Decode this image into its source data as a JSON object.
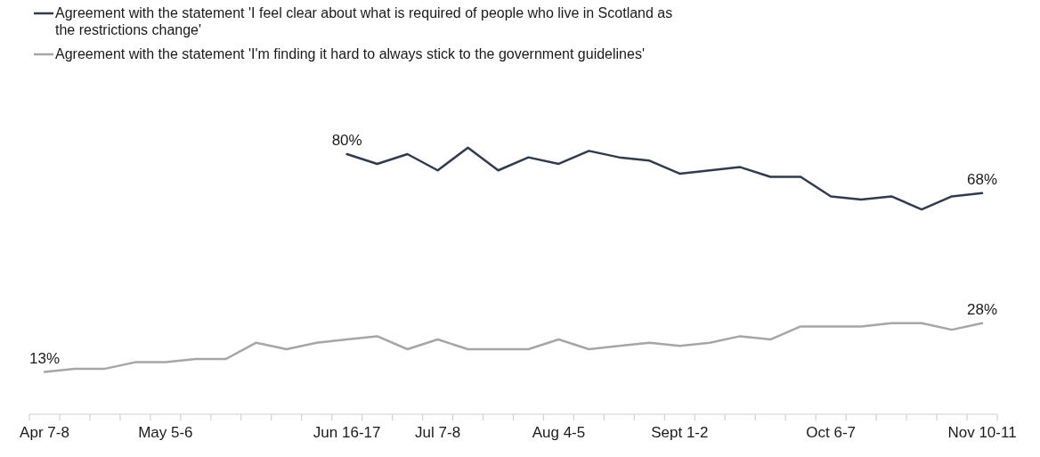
{
  "chart_data": {
    "type": "line",
    "categories": [
      "Apr 7-8",
      null,
      null,
      null,
      "May 5-6",
      null,
      null,
      null,
      null,
      null,
      "Jun 16-17",
      null,
      null,
      "Jul 7-8",
      null,
      null,
      null,
      "Aug 4-5",
      null,
      null,
      null,
      "Sept 1-2",
      null,
      null,
      null,
      null,
      "Oct 6-7",
      null,
      null,
      null,
      null,
      "Nov 10-11"
    ],
    "series": [
      {
        "name": "Agreement with the statement 'I feel clear about what is required of people who live in Scotland as the restrictions change'",
        "color": "#2e3b50",
        "values": [
          null,
          null,
          null,
          null,
          null,
          null,
          null,
          null,
          null,
          null,
          80,
          77,
          80,
          75,
          82,
          75,
          79,
          77,
          81,
          79,
          78,
          74,
          75,
          76,
          73,
          73,
          67,
          66,
          67,
          63,
          67,
          68
        ],
        "value_labels": [
          null,
          null,
          null,
          null,
          null,
          null,
          null,
          null,
          null,
          null,
          "80%",
          null,
          null,
          null,
          null,
          null,
          null,
          null,
          null,
          null,
          null,
          null,
          null,
          null,
          null,
          null,
          null,
          null,
          null,
          null,
          null,
          "68%"
        ]
      },
      {
        "name": "Agreement with the statement 'I'm finding it hard to always stick to the government guidelines'",
        "color": "#a6a6a6",
        "values": [
          13,
          14,
          14,
          16,
          16,
          17,
          17,
          22,
          20,
          22,
          23,
          24,
          20,
          23,
          20,
          20,
          20,
          23,
          20,
          21,
          22,
          21,
          22,
          24,
          23,
          27,
          27,
          27,
          28,
          28,
          26,
          28
        ],
        "value_labels": [
          "13%",
          null,
          null,
          null,
          null,
          null,
          null,
          null,
          null,
          null,
          null,
          null,
          null,
          null,
          null,
          null,
          null,
          null,
          null,
          null,
          null,
          null,
          null,
          null,
          null,
          null,
          null,
          null,
          null,
          null,
          null,
          "28%"
        ]
      }
    ],
    "tick_labels": "x",
    "legend": "top",
    "marker": "none",
    "line_style": "solid"
  }
}
